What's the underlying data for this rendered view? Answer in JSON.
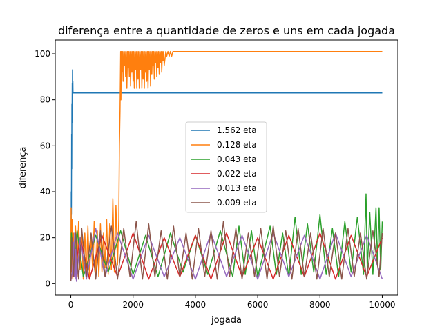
{
  "chart_data": {
    "type": "line",
    "title": "diferença entre a quantidade de zeros e uns em cada jogada",
    "xlabel": "jogada",
    "ylabel": "diferença",
    "xlim": [
      -500,
      10500
    ],
    "ylim": [
      -5,
      106
    ],
    "x_ticks": [
      0,
      2000,
      4000,
      6000,
      8000,
      10000
    ],
    "x_tick_labels": [
      "0",
      "2000",
      "4000",
      "6000",
      "8000",
      "10000"
    ],
    "y_ticks": [
      0,
      20,
      40,
      60,
      80,
      100
    ],
    "y_tick_labels": [
      "0",
      "20",
      "40",
      "60",
      "80",
      "100"
    ],
    "grid": false,
    "legend_position": "center",
    "series": [
      {
        "name": "1.562 eta",
        "color": "#1f77b4",
        "points": [
          [
            0,
            1
          ],
          [
            5,
            20
          ],
          [
            10,
            12
          ],
          [
            15,
            40
          ],
          [
            20,
            30
          ],
          [
            25,
            65
          ],
          [
            30,
            50
          ],
          [
            35,
            78
          ],
          [
            40,
            70
          ],
          [
            45,
            87
          ],
          [
            50,
            80
          ],
          [
            55,
            93
          ],
          [
            60,
            84
          ],
          [
            65,
            88
          ],
          [
            70,
            83
          ],
          [
            10000,
            83
          ]
        ]
      },
      {
        "name": "0.128 eta",
        "color": "#ff7f0e",
        "points": [
          [
            0,
            1
          ],
          [
            10,
            33
          ],
          [
            20,
            5
          ],
          [
            40,
            28
          ],
          [
            60,
            2
          ],
          [
            80,
            22
          ],
          [
            100,
            4
          ],
          [
            150,
            25
          ],
          [
            200,
            3
          ],
          [
            250,
            27
          ],
          [
            300,
            6
          ],
          [
            350,
            24
          ],
          [
            400,
            2
          ],
          [
            450,
            22
          ],
          [
            500,
            5
          ],
          [
            550,
            25
          ],
          [
            600,
            3
          ],
          [
            650,
            21
          ],
          [
            700,
            6
          ],
          [
            750,
            27
          ],
          [
            800,
            4
          ],
          [
            850,
            23
          ],
          [
            900,
            3
          ],
          [
            950,
            26
          ],
          [
            1000,
            5
          ],
          [
            1050,
            22
          ],
          [
            1100,
            7
          ],
          [
            1150,
            28
          ],
          [
            1200,
            4
          ],
          [
            1250,
            26
          ],
          [
            1300,
            6
          ],
          [
            1350,
            37
          ],
          [
            1400,
            5
          ],
          [
            1450,
            34
          ],
          [
            1500,
            8
          ],
          [
            1540,
            28
          ],
          [
            1560,
            60
          ],
          [
            1580,
            75
          ],
          [
            1600,
            101
          ],
          [
            1610,
            80
          ],
          [
            1620,
            101
          ],
          [
            1640,
            92
          ],
          [
            1660,
            101
          ],
          [
            1680,
            88
          ],
          [
            1700,
            101
          ],
          [
            1720,
            95
          ],
          [
            1740,
            101
          ],
          [
            1760,
            90
          ],
          [
            1780,
            101
          ],
          [
            1800,
            85
          ],
          [
            1820,
            101
          ],
          [
            1840,
            94
          ],
          [
            1860,
            101
          ],
          [
            1880,
            90
          ],
          [
            1900,
            101
          ],
          [
            1920,
            86
          ],
          [
            1940,
            101
          ],
          [
            1960,
            92
          ],
          [
            1980,
            101
          ],
          [
            2000,
            88
          ],
          [
            2020,
            101
          ],
          [
            2040,
            85
          ],
          [
            2060,
            101
          ],
          [
            2080,
            93
          ],
          [
            2100,
            101
          ],
          [
            2120,
            85
          ],
          [
            2140,
            101
          ],
          [
            2160,
            89
          ],
          [
            2180,
            101
          ],
          [
            2200,
            85
          ],
          [
            2220,
            101
          ],
          [
            2240,
            93
          ],
          [
            2260,
            101
          ],
          [
            2280,
            85
          ],
          [
            2300,
            101
          ],
          [
            2320,
            89
          ],
          [
            2340,
            101
          ],
          [
            2360,
            85
          ],
          [
            2380,
            101
          ],
          [
            2400,
            92
          ],
          [
            2420,
            101
          ],
          [
            2440,
            88
          ],
          [
            2460,
            101
          ],
          [
            2480,
            85
          ],
          [
            2500,
            101
          ],
          [
            2520,
            93
          ],
          [
            2540,
            101
          ],
          [
            2560,
            86
          ],
          [
            2580,
            101
          ],
          [
            2600,
            91
          ],
          [
            2620,
            101
          ],
          [
            2640,
            95
          ],
          [
            2660,
            101
          ],
          [
            2680,
            89
          ],
          [
            2700,
            101
          ],
          [
            2720,
            96
          ],
          [
            2740,
            101
          ],
          [
            2760,
            90
          ],
          [
            2780,
            101
          ],
          [
            2800,
            94
          ],
          [
            2820,
            101
          ],
          [
            2840,
            91
          ],
          [
            2860,
            101
          ],
          [
            2880,
            96
          ],
          [
            2900,
            101
          ],
          [
            2920,
            92
          ],
          [
            2940,
            101
          ],
          [
            2960,
            97
          ],
          [
            2980,
            101
          ],
          [
            3000,
            95
          ],
          [
            3050,
            101
          ],
          [
            3080,
            99
          ],
          [
            3120,
            101
          ],
          [
            3160,
            99
          ],
          [
            3200,
            101
          ],
          [
            3240,
            99
          ],
          [
            3280,
            101
          ],
          [
            10000,
            101
          ]
        ]
      },
      {
        "name": "0.043 eta",
        "color": "#2ca02c",
        "points": [
          [
            0,
            1
          ],
          [
            20,
            22
          ],
          [
            100,
            4
          ],
          [
            200,
            23
          ],
          [
            400,
            3
          ],
          [
            800,
            21
          ],
          [
            1200,
            5
          ],
          [
            1600,
            23
          ],
          [
            2000,
            4
          ],
          [
            2400,
            21
          ],
          [
            2800,
            3
          ],
          [
            3200,
            22
          ],
          [
            3600,
            5
          ],
          [
            4000,
            21
          ],
          [
            4400,
            4
          ],
          [
            4800,
            23
          ],
          [
            5200,
            3
          ],
          [
            5400,
            25
          ],
          [
            5600,
            4
          ],
          [
            5800,
            23
          ],
          [
            6000,
            3
          ],
          [
            6400,
            25
          ],
          [
            6600,
            4
          ],
          [
            6800,
            22
          ],
          [
            7000,
            3
          ],
          [
            7200,
            29
          ],
          [
            7400,
            4
          ],
          [
            7600,
            26
          ],
          [
            7800,
            5
          ],
          [
            8000,
            30
          ],
          [
            8200,
            4
          ],
          [
            8400,
            24
          ],
          [
            8600,
            3
          ],
          [
            8800,
            27
          ],
          [
            9000,
            5
          ],
          [
            9200,
            29
          ],
          [
            9400,
            4
          ],
          [
            9480,
            39
          ],
          [
            9520,
            6
          ],
          [
            9600,
            31
          ],
          [
            9700,
            4
          ],
          [
            9800,
            33
          ],
          [
            9850,
            8
          ],
          [
            9900,
            33
          ],
          [
            9950,
            6
          ],
          [
            10000,
            27
          ]
        ]
      },
      {
        "name": "0.022 eta",
        "color": "#d62728",
        "points": [
          [
            0,
            1
          ],
          [
            30,
            18
          ],
          [
            100,
            3
          ],
          [
            300,
            20
          ],
          [
            600,
            2
          ],
          [
            1000,
            21
          ],
          [
            1500,
            3
          ],
          [
            2000,
            22
          ],
          [
            2500,
            2
          ],
          [
            3000,
            20
          ],
          [
            3500,
            3
          ],
          [
            4000,
            21
          ],
          [
            4500,
            2
          ],
          [
            5000,
            22
          ],
          [
            5500,
            3
          ],
          [
            6000,
            20
          ],
          [
            6500,
            2
          ],
          [
            7000,
            21
          ],
          [
            7500,
            3
          ],
          [
            8000,
            22
          ],
          [
            8500,
            2
          ],
          [
            9000,
            21
          ],
          [
            9500,
            3
          ],
          [
            10000,
            20
          ]
        ]
      },
      {
        "name": "0.013 eta",
        "color": "#9467bd",
        "points": [
          [
            0,
            1
          ],
          [
            50,
            5
          ],
          [
            80,
            18
          ],
          [
            100,
            3
          ],
          [
            120,
            22
          ],
          [
            140,
            2
          ],
          [
            160,
            15
          ],
          [
            180,
            1
          ],
          [
            300,
            20
          ],
          [
            500,
            2
          ],
          [
            800,
            24
          ],
          [
            1100,
            3
          ],
          [
            1500,
            22
          ],
          [
            2000,
            2
          ],
          [
            2500,
            21
          ],
          [
            3000,
            3
          ],
          [
            3500,
            20
          ],
          [
            4000,
            2
          ],
          [
            4500,
            22
          ],
          [
            5000,
            3
          ],
          [
            5500,
            21
          ],
          [
            6000,
            2
          ],
          [
            6500,
            22
          ],
          [
            7000,
            3
          ],
          [
            7500,
            21
          ],
          [
            8000,
            2
          ],
          [
            8500,
            22
          ],
          [
            9000,
            3
          ],
          [
            9500,
            21
          ],
          [
            10000,
            2
          ]
        ]
      },
      {
        "name": "0.009 eta",
        "color": "#8c564b",
        "points": [
          [
            0,
            1
          ],
          [
            40,
            20
          ],
          [
            80,
            3
          ],
          [
            150,
            22
          ],
          [
            250,
            2
          ],
          [
            350,
            24
          ],
          [
            500,
            3
          ],
          [
            650,
            22
          ],
          [
            800,
            2
          ],
          [
            950,
            23
          ],
          [
            1100,
            3
          ],
          [
            1300,
            25
          ],
          [
            1500,
            2
          ],
          [
            1700,
            24
          ],
          [
            1900,
            3
          ],
          [
            2100,
            27
          ],
          [
            2300,
            2
          ],
          [
            2500,
            26
          ],
          [
            2700,
            3
          ],
          [
            2900,
            23
          ],
          [
            3100,
            2
          ],
          [
            3300,
            25
          ],
          [
            3500,
            3
          ],
          [
            3700,
            22
          ],
          [
            3900,
            2
          ],
          [
            4100,
            24
          ],
          [
            4300,
            3
          ],
          [
            4500,
            23
          ],
          [
            4700,
            2
          ],
          [
            4900,
            27
          ],
          [
            5100,
            3
          ],
          [
            5300,
            24
          ],
          [
            5500,
            2
          ],
          [
            5700,
            22
          ],
          [
            5900,
            3
          ],
          [
            6100,
            24
          ],
          [
            6300,
            2
          ],
          [
            6500,
            25
          ],
          [
            6700,
            3
          ],
          [
            6900,
            23
          ],
          [
            7100,
            2
          ],
          [
            7300,
            24
          ],
          [
            7500,
            3
          ],
          [
            7700,
            22
          ],
          [
            7900,
            2
          ],
          [
            8100,
            24
          ],
          [
            8300,
            3
          ],
          [
            8500,
            22
          ],
          [
            8700,
            2
          ],
          [
            8900,
            24
          ],
          [
            9100,
            3
          ],
          [
            9300,
            22
          ],
          [
            9500,
            2
          ],
          [
            9700,
            23
          ],
          [
            9900,
            3
          ],
          [
            10000,
            22
          ]
        ]
      }
    ]
  }
}
